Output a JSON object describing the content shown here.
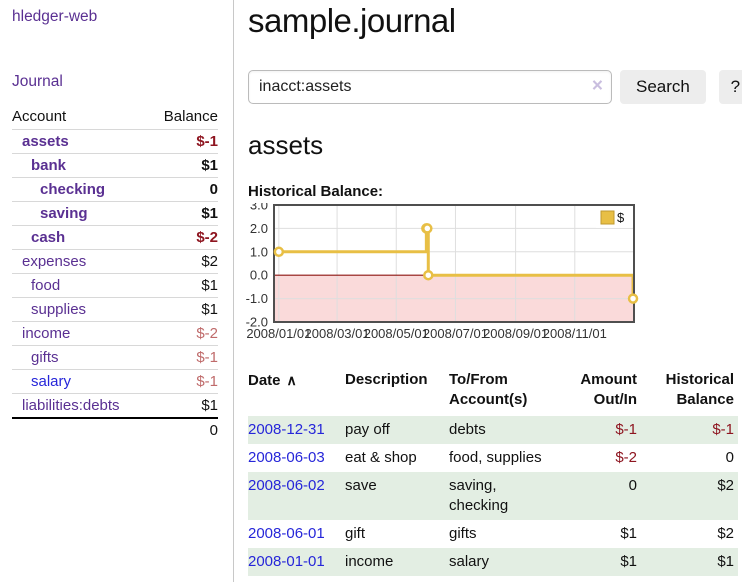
{
  "brand": "hledger-web",
  "nav": {
    "journal": "Journal"
  },
  "colors": {
    "link_purple": "#5a3092",
    "link_blue": "#2626d9",
    "negative_strong": "#8e1520",
    "negative_soft": "#bf6a6a",
    "row_green": "#e3eee3",
    "chart_gold": "#e8bf45",
    "chart_negative_fill": "#fadada"
  },
  "sidebar": {
    "col_account": "Account",
    "col_balance": "Balance",
    "accounts": [
      {
        "name": "assets",
        "depth": 0,
        "balance": "$-1",
        "bold": true,
        "neg": "strong"
      },
      {
        "name": "bank",
        "depth": 1,
        "balance": "$1",
        "bold": true
      },
      {
        "name": "checking",
        "depth": 2,
        "balance": "0",
        "bold": true
      },
      {
        "name": "saving",
        "depth": 2,
        "balance": "$1",
        "bold": true
      },
      {
        "name": "cash",
        "depth": 1,
        "balance": "$-2",
        "bold": true,
        "neg": "strong"
      },
      {
        "name": "expenses",
        "depth": 0,
        "balance": "$2"
      },
      {
        "name": "food",
        "depth": 1,
        "balance": "$1"
      },
      {
        "name": "supplies",
        "depth": 1,
        "balance": "$1"
      },
      {
        "name": "income",
        "depth": 0,
        "balance": "$-2",
        "neg": "soft"
      },
      {
        "name": "gifts",
        "depth": 1,
        "balance": "$-1",
        "neg": "soft"
      },
      {
        "name": "salary",
        "depth": 1,
        "balance": "$-1",
        "neg": "soft",
        "blue": true
      },
      {
        "name": "liabilities:debts",
        "depth": 0,
        "balance": "$1"
      }
    ],
    "total": "0"
  },
  "main": {
    "title": "sample.journal",
    "search": {
      "value": "inacct:assets",
      "clear_icon": "×",
      "search_button": "Search",
      "help_button": "?"
    },
    "account_heading": "assets",
    "chart_title": "Historical Balance:"
  },
  "chart_data": {
    "type": "line",
    "step": true,
    "title": "Historical Balance",
    "x_epoch": "2008-01-01",
    "x_domain_days": [
      -5,
      366
    ],
    "ylim": [
      -2,
      3
    ],
    "series": [
      {
        "name": "$",
        "color": "#e8bf45",
        "points": [
          [
            "2008-01-01",
            1
          ],
          [
            "2008-06-01",
            2
          ],
          [
            "2008-06-02",
            2
          ],
          [
            "2008-06-03",
            0
          ],
          [
            "2008-12-31",
            -1
          ]
        ]
      }
    ],
    "yticks": [
      {
        "label": "3.0",
        "v": 3
      },
      {
        "label": "2.0",
        "v": 2
      },
      {
        "label": "1.0",
        "v": 1
      },
      {
        "label": "0.0",
        "v": 0
      },
      {
        "label": "-1.0",
        "v": -1
      },
      {
        "label": "-2.0",
        "v": -2
      }
    ],
    "xticks": [
      {
        "label": "2008/01/01",
        "day": 0
      },
      {
        "label": "2008/03/01",
        "day": 60
      },
      {
        "label": "2008/05/01",
        "day": 121
      },
      {
        "label": "2008/07/01",
        "day": 182
      },
      {
        "label": "2008/09/01",
        "day": 244
      },
      {
        "label": "2008/11/01",
        "day": 305
      }
    ],
    "legend": {
      "label": "$",
      "position": "top-right"
    },
    "grid": true,
    "grid_color": "#dedede",
    "border_color": "#4f4f4f",
    "negative_fill": "#fadada",
    "zero_line": "#8c1411"
  },
  "register": {
    "headers": {
      "date": "Date",
      "sort_icon": "∧",
      "description": "Description",
      "accounts": "To/From Account(s)",
      "amount": "Amount Out/In",
      "balance": "Historical Balance"
    },
    "rows": [
      {
        "date": "2008-12-31",
        "description": "pay off",
        "accounts": "debts",
        "amount": "$-1",
        "balance": "$-1"
      },
      {
        "date": "2008-06-03",
        "description": "eat & shop",
        "accounts": "food, supplies",
        "amount": "$-2",
        "balance": "0"
      },
      {
        "date": "2008-06-02",
        "description": "save",
        "accounts": "saving, checking",
        "amount": "0",
        "balance": "$2"
      },
      {
        "date": "2008-06-01",
        "description": "gift",
        "accounts": "gifts",
        "amount": "$1",
        "balance": "$2"
      },
      {
        "date": "2008-01-01",
        "description": "income",
        "accounts": "salary",
        "amount": "$1",
        "balance": "$1"
      }
    ]
  }
}
